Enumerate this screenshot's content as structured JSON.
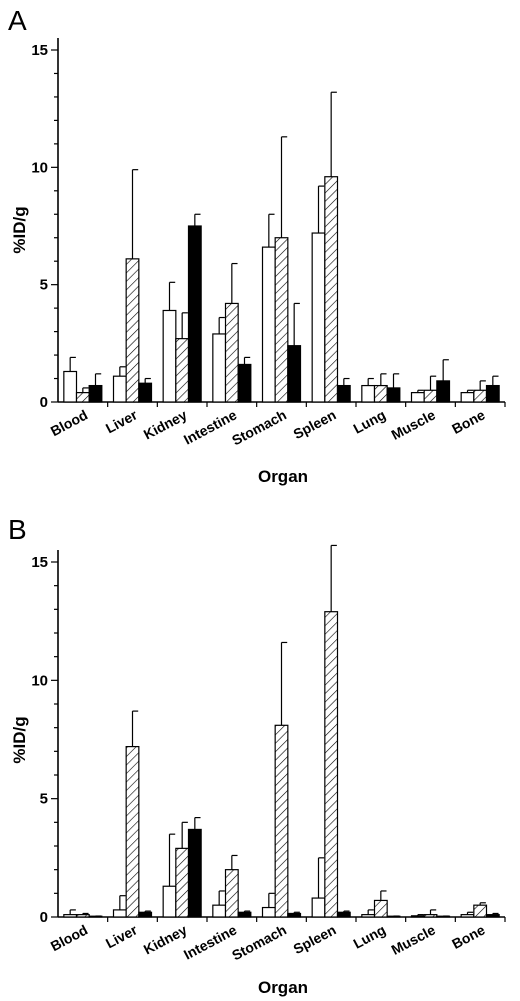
{
  "chart_data": [
    {
      "type": "bar",
      "panel": "A",
      "title": "",
      "xlabel": "Organ",
      "ylabel": "%ID/g",
      "ylim": [
        0,
        15
      ],
      "yticks": [
        "0",
        "5",
        "10",
        "15"
      ],
      "grid": false,
      "legend": "none",
      "categories": [
        "Blood",
        "Liver",
        "Kidney",
        "Intestine",
        "Stomach",
        "Spleen",
        "Lung",
        "Muscle",
        "Bone"
      ],
      "series": [
        {
          "fill": "white",
          "values": [
            1.3,
            1.1,
            3.9,
            2.9,
            6.6,
            7.2,
            0.7,
            0.4,
            0.4
          ],
          "errors": [
            0.6,
            0.4,
            1.2,
            0.7,
            1.4,
            2.0,
            0.3,
            0.1,
            0.1
          ]
        },
        {
          "fill": "hatched",
          "values": [
            0.4,
            6.1,
            2.7,
            4.2,
            7.0,
            9.6,
            0.7,
            0.5,
            0.5
          ],
          "errors": [
            0.2,
            3.8,
            1.1,
            1.7,
            4.3,
            3.6,
            0.5,
            0.6,
            0.4
          ]
        },
        {
          "fill": "black",
          "values": [
            0.7,
            0.8,
            7.5,
            1.6,
            2.4,
            0.7,
            0.6,
            0.9,
            0.7
          ],
          "errors": [
            0.5,
            0.2,
            0.5,
            0.3,
            1.8,
            0.3,
            0.6,
            0.9,
            0.4
          ]
        }
      ]
    },
    {
      "type": "bar",
      "panel": "B",
      "title": "",
      "xlabel": "Organ",
      "ylabel": "%ID/g",
      "ylim": [
        0,
        15
      ],
      "yticks": [
        "0",
        "5",
        "10",
        "15"
      ],
      "grid": false,
      "legend": "none",
      "categories": [
        "Blood",
        "Liver",
        "Kidney",
        "Intestine",
        "Stomach",
        "Spleen",
        "Lung",
        "Muscle",
        "Bone"
      ],
      "series": [
        {
          "fill": "white",
          "values": [
            0.1,
            0.3,
            1.3,
            0.5,
            0.4,
            0.8,
            0.1,
            0.05,
            0.1
          ],
          "errors": [
            0.2,
            0.6,
            2.2,
            0.6,
            0.6,
            1.7,
            0.2,
            0.05,
            0.1
          ]
        },
        {
          "fill": "hatched",
          "values": [
            0.1,
            7.2,
            2.9,
            2.0,
            8.1,
            12.9,
            0.7,
            0.1,
            0.5
          ],
          "errors": [
            0.05,
            1.5,
            1.1,
            0.6,
            3.5,
            2.8,
            0.4,
            0.2,
            0.1
          ]
        },
        {
          "fill": "black",
          "values": [
            0.02,
            0.2,
            3.7,
            0.2,
            0.15,
            0.2,
            0.02,
            0.02,
            0.1
          ],
          "errors": [
            0.02,
            0.05,
            0.5,
            0.05,
            0.05,
            0.05,
            0.02,
            0.02,
            0.05
          ]
        }
      ]
    }
  ]
}
